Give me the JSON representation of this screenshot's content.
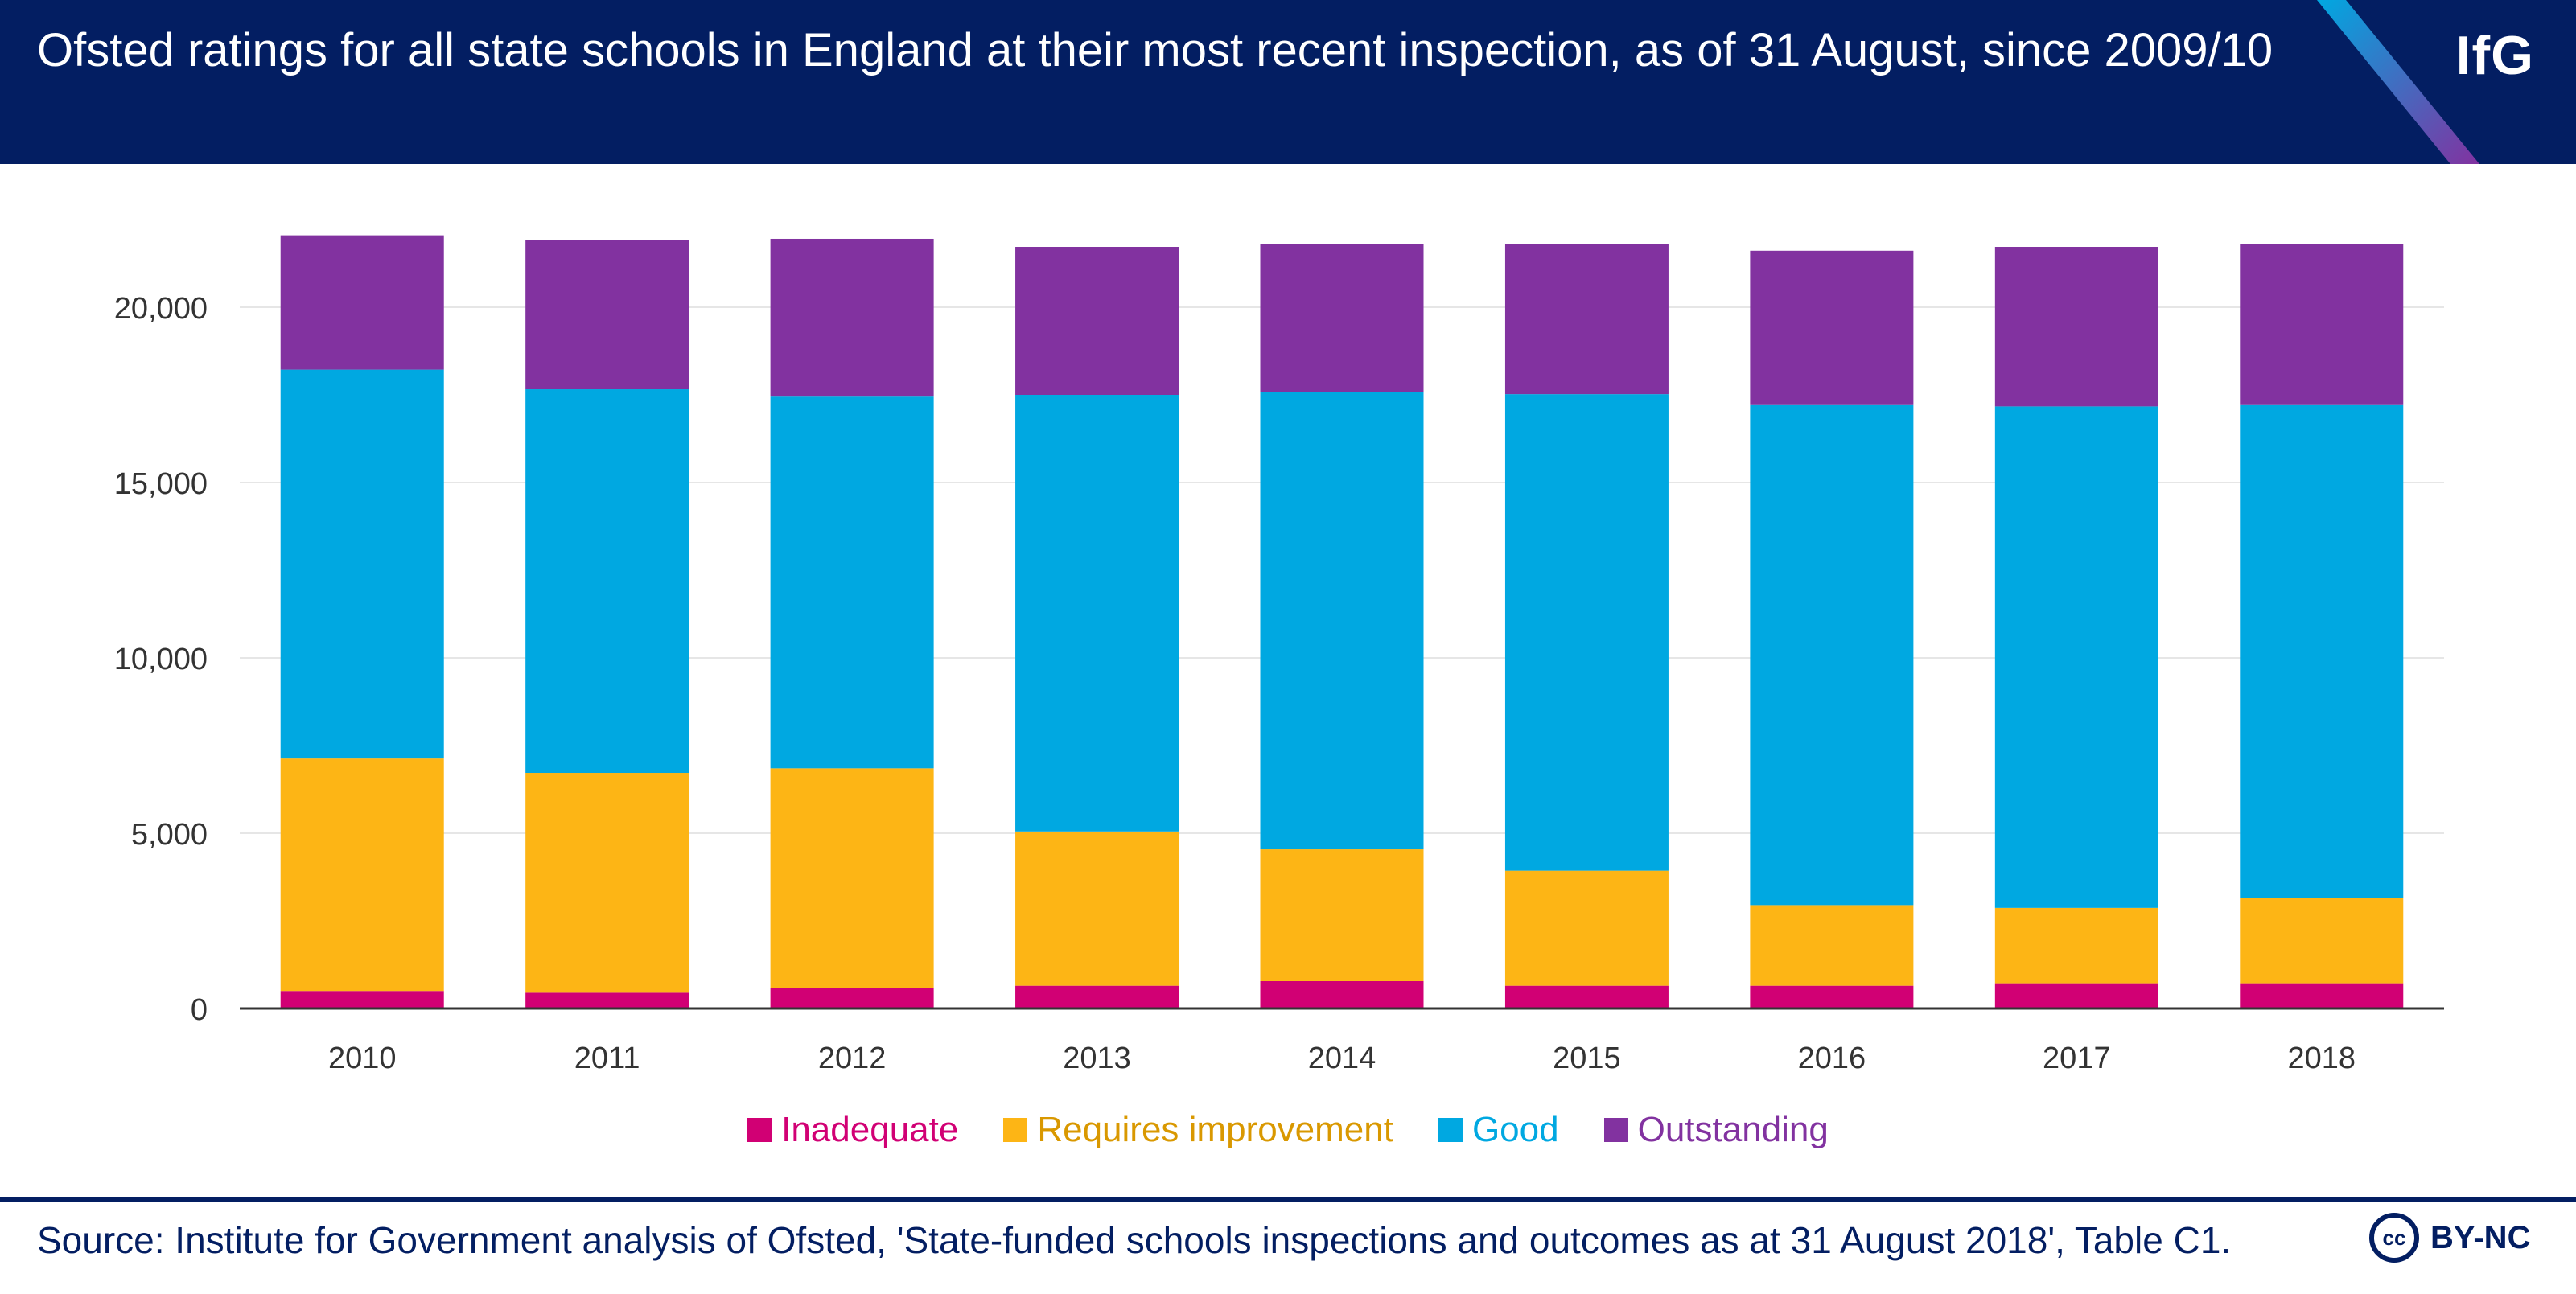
{
  "header": {
    "title": "Ofsted ratings for all state schools in England at their most recent inspection, as of 31 August, since 2009/10",
    "logo": "IfG"
  },
  "colors": {
    "header_bg": "#031e62",
    "inadequate": "#d10074",
    "requires_improvement": "#fdb515",
    "good": "#00a8e1",
    "outstanding": "#8232a0",
    "stripe_start": "#00a8e1",
    "stripe_end": "#8232a0"
  },
  "chart_data": {
    "type": "bar",
    "stacked": true,
    "title": "Ofsted ratings for all state schools in England at their most recent inspection, as of 31 August, since 2009/10",
    "xlabel": "",
    "ylabel": "",
    "categories": [
      "2010",
      "2011",
      "2012",
      "2013",
      "2014",
      "2015",
      "2016",
      "2017",
      "2018"
    ],
    "ylim": [
      0,
      22000
    ],
    "yticks": [
      0,
      5000,
      10000,
      15000,
      20000
    ],
    "ytick_labels": [
      "0",
      "5,000",
      "10,000",
      "15,000",
      "20,000"
    ],
    "grid": true,
    "legend_position": "bottom",
    "series": [
      {
        "name": "Inadequate",
        "color": "#d10074",
        "values": [
          500,
          450,
          580,
          650,
          780,
          650,
          650,
          720,
          720
        ]
      },
      {
        "name": "Requires improvement",
        "color": "#fdb515",
        "values": [
          6630,
          6270,
          6270,
          4400,
          3760,
          3280,
          2300,
          2150,
          2440
        ]
      },
      {
        "name": "Good",
        "color": "#00a8e1",
        "values": [
          11090,
          10940,
          10600,
          12450,
          13050,
          13590,
          14280,
          14300,
          14070
        ]
      },
      {
        "name": "Outstanding",
        "color": "#8232a0",
        "values": [
          3830,
          4260,
          4500,
          4220,
          4220,
          4280,
          4380,
          4550,
          4570
        ]
      }
    ]
  },
  "footer": {
    "source": "Source: Institute for Government analysis of Ofsted, 'State-funded schools inspections and outcomes as at 31 August 2018', Table C1.",
    "cc": "cc",
    "license": "BY-NC"
  }
}
